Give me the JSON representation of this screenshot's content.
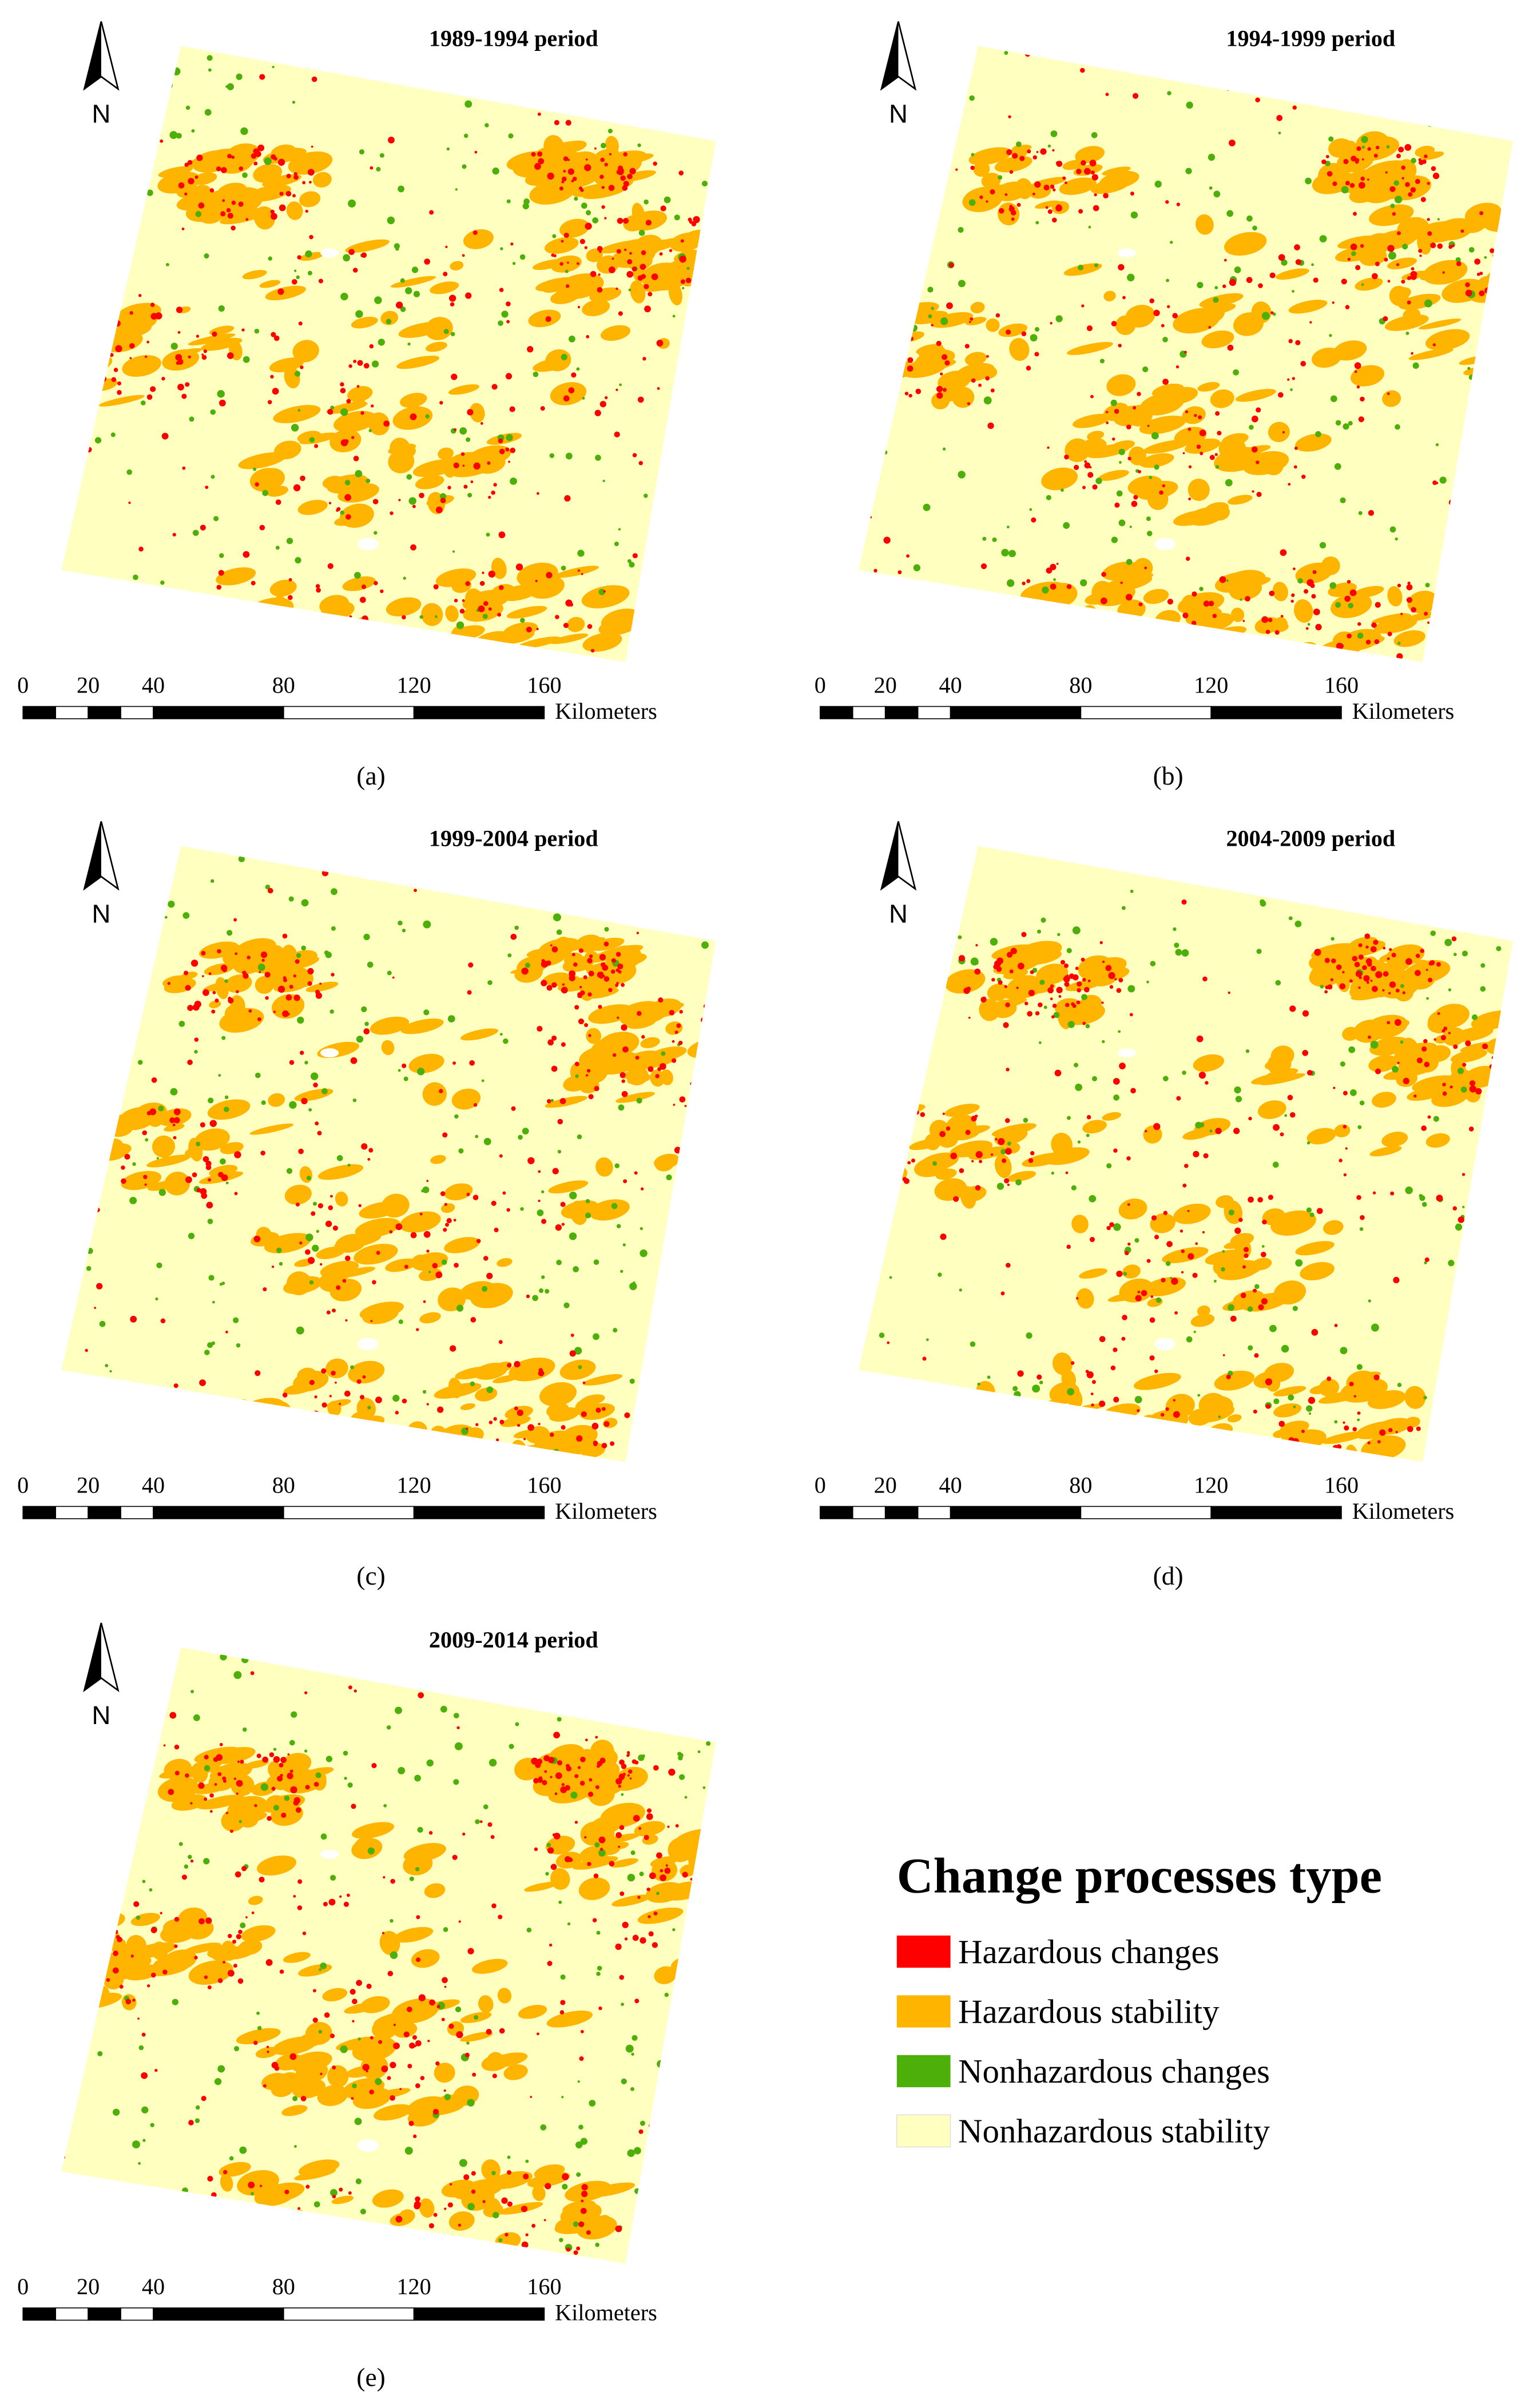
{
  "panels": [
    {
      "title": "1989-1994 period",
      "label": "(a)",
      "scale": {
        "ticks": [
          0,
          20,
          40,
          80,
          120,
          160
        ],
        "unit": "Kilometers"
      },
      "north": "N"
    },
    {
      "title": "1994-1999 period",
      "label": "(b)",
      "scale": {
        "ticks": [
          0,
          20,
          40,
          80,
          120,
          160
        ],
        "unit": "Kilometers"
      },
      "north": "N"
    },
    {
      "title": "1999-2004 period",
      "label": "(c)",
      "scale": {
        "ticks": [
          0,
          20,
          40,
          80,
          120,
          160
        ],
        "unit": "Kilometers"
      },
      "north": "N"
    },
    {
      "title": "2004-2009 period",
      "label": "(d)",
      "scale": {
        "ticks": [
          0,
          20,
          40,
          80,
          120,
          160
        ],
        "unit": "Kilometers"
      },
      "north": "N"
    },
    {
      "title": "2009-2014 period",
      "label": "(e)",
      "scale": {
        "ticks": [
          0,
          20,
          40,
          80,
          120,
          160
        ],
        "unit": "Kilometers"
      },
      "north": "N"
    }
  ],
  "legend": {
    "title": "Change processes type",
    "items": [
      {
        "name": "Hazardous changes",
        "color": "#ff0000"
      },
      {
        "name": "Hazardous stability",
        "color": "#ffb400"
      },
      {
        "name": "Nonhazardous changes",
        "color": "#4caf0a"
      },
      {
        "name": "Nonhazardous stability",
        "color": "#ffffc0"
      }
    ]
  }
}
